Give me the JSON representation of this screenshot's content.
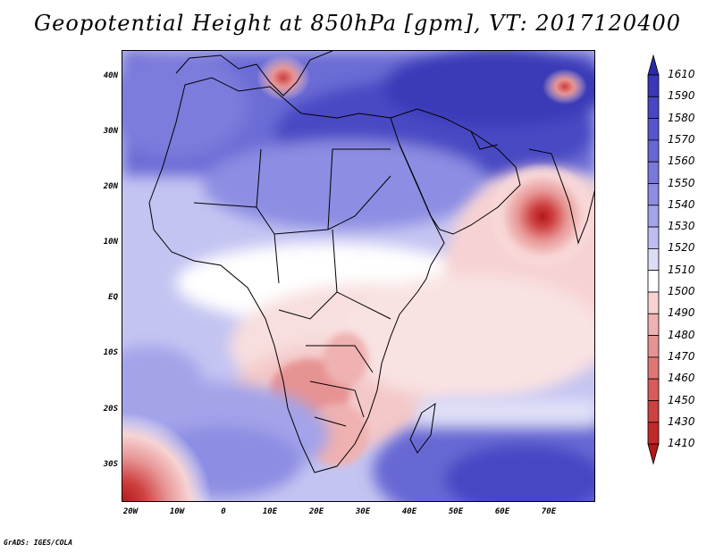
{
  "title": "Geopotential Height at 850hPa [gpm], VT: 2017120400",
  "credit": "GrADS: IGES/COLA",
  "lat_labels": [
    "40N",
    "30N",
    "20N",
    "10N",
    "EQ",
    "10S",
    "20S",
    "30S"
  ],
  "lon_labels": [
    "20W",
    "10W",
    "0",
    "10E",
    "20E",
    "30E",
    "40E",
    "50E",
    "60E",
    "70E"
  ],
  "colorbar": {
    "levels": [
      "1610",
      "1590",
      "1580",
      "1570",
      "1560",
      "1550",
      "1540",
      "1530",
      "1520",
      "1510",
      "1500",
      "1490",
      "1480",
      "1470",
      "1460",
      "1450",
      "1430",
      "1410"
    ],
    "colors": [
      "#2b2ba8",
      "#3838b8",
      "#4747c4",
      "#5656cc",
      "#6767d4",
      "#7979dc",
      "#8d8de3",
      "#a3a3ea",
      "#bdbdf2",
      "#dcdcf8",
      "#ffffff",
      "#f7d2d2",
      "#efb1b1",
      "#e79393",
      "#df7676",
      "#d85b5b",
      "#ce4141",
      "#c22a2a",
      "#b51818"
    ]
  },
  "colors": {
    "ocean_blue": "#aaaaee",
    "land_light": "#d8d8f6",
    "coast": "#000000"
  }
}
